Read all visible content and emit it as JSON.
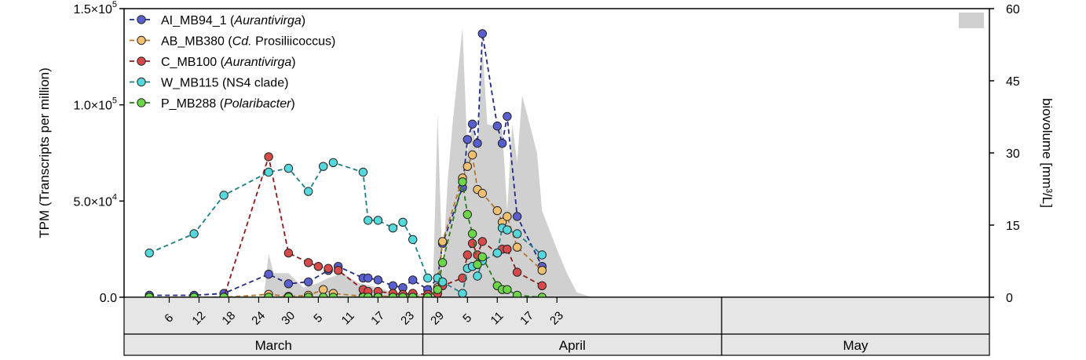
{
  "chart_data": {
    "type": "line",
    "x_unit": "date",
    "year_start_month": "March",
    "ylabel": "TPM (Transcripts per million)",
    "ylabel2": "biovolume [mm³/L]",
    "ylim": [
      0,
      150000
    ],
    "ylim2": [
      0,
      60
    ],
    "yticks": [
      {
        "value": 0,
        "label": "0.0"
      },
      {
        "value": 50000,
        "base": "5.0×10",
        "exp": "4"
      },
      {
        "value": 100000,
        "base": "1.0×10",
        "exp": "5"
      },
      {
        "value": 150000,
        "base": "1.5×10",
        "exp": "5"
      }
    ],
    "yticks2": [
      "0",
      "15",
      "30",
      "45",
      "60"
    ],
    "x_day_ticks": [
      {
        "month": "March",
        "day": "6"
      },
      {
        "month": "March",
        "day": "12"
      },
      {
        "month": "March",
        "day": "18"
      },
      {
        "month": "March",
        "day": "24"
      },
      {
        "month": "March",
        "day": "30"
      },
      {
        "month": "April",
        "day": "5"
      },
      {
        "month": "April",
        "day": "11"
      },
      {
        "month": "April",
        "day": "17"
      },
      {
        "month": "April",
        "day": "23"
      },
      {
        "month": "April",
        "day": "29"
      },
      {
        "month": "May",
        "day": "5"
      },
      {
        "month": "May",
        "day": "11"
      },
      {
        "month": "May",
        "day": "17"
      },
      {
        "month": "May",
        "day": "23"
      }
    ],
    "months": [
      "March",
      "April",
      "May"
    ],
    "legend_position": "top-left",
    "series": [
      {
        "name_parts": [
          {
            "text": "AI_MB94_1 (",
            "italic": false
          },
          {
            "text": "Aurantivirga",
            "italic": true
          },
          {
            "text": ")",
            "italic": false
          }
        ],
        "line_color": "#1f2a8a",
        "fill_color": "#5a5fd0",
        "points": [
          [
            "03-02",
            1000
          ],
          [
            "03-11",
            1000
          ],
          [
            "03-17",
            2000
          ],
          [
            "03-26",
            12000
          ],
          [
            "03-30",
            7000
          ],
          [
            "04-03",
            8000
          ],
          [
            "04-07",
            14000
          ],
          [
            "04-09",
            16000
          ],
          [
            "04-14",
            10000
          ],
          [
            "04-15",
            10000
          ],
          [
            "04-17",
            9000
          ],
          [
            "04-20",
            6000
          ],
          [
            "04-22",
            5000
          ],
          [
            "04-24",
            9000
          ],
          [
            "04-27",
            4000
          ],
          [
            "04-29",
            10000
          ],
          [
            "04-30",
            28000
          ],
          [
            "05-04",
            57000
          ],
          [
            "05-05",
            82000
          ],
          [
            "05-06",
            90000
          ],
          [
            "05-07",
            80000
          ],
          [
            "05-08",
            137000
          ],
          [
            "05-11",
            89000
          ],
          [
            "05-12",
            80000
          ],
          [
            "05-13",
            94000
          ],
          [
            "05-15",
            42000
          ],
          [
            "05-20",
            16000
          ]
        ]
      },
      {
        "name_parts": [
          {
            "text": "AB_MB380 (",
            "italic": false
          },
          {
            "text": "Cd.",
            "italic": true
          },
          {
            "text": " Prosiliicoccus)",
            "italic": false
          }
        ],
        "line_color": "#b5762a",
        "fill_color": "#f0c070",
        "points": [
          [
            "03-02",
            0
          ],
          [
            "03-11",
            0
          ],
          [
            "03-17",
            0
          ],
          [
            "03-26",
            1500
          ],
          [
            "03-30",
            500
          ],
          [
            "04-03",
            1000
          ],
          [
            "04-06",
            4000
          ],
          [
            "04-08",
            2000
          ],
          [
            "04-14",
            500
          ],
          [
            "04-15",
            500
          ],
          [
            "04-17",
            500
          ],
          [
            "04-20",
            500
          ],
          [
            "04-22",
            500
          ],
          [
            "04-24",
            500
          ],
          [
            "04-27",
            500
          ],
          [
            "04-29",
            5000
          ],
          [
            "04-30",
            29000
          ],
          [
            "05-04",
            62000
          ],
          [
            "05-05",
            68000
          ],
          [
            "05-06",
            74000
          ],
          [
            "05-07",
            56000
          ],
          [
            "05-08",
            54000
          ],
          [
            "05-11",
            45000
          ],
          [
            "05-12",
            39000
          ],
          [
            "05-13",
            42000
          ],
          [
            "05-15",
            26000
          ],
          [
            "05-20",
            14000
          ]
        ]
      },
      {
        "name_parts": [
          {
            "text": "C_MB100 (",
            "italic": false
          },
          {
            "text": "Aurantivirga",
            "italic": true
          },
          {
            "text": ")",
            "italic": false
          }
        ],
        "line_color": "#8e1a1a",
        "fill_color": "#d64a4a",
        "points": [
          [
            "03-02",
            0
          ],
          [
            "03-11",
            0
          ],
          [
            "03-17",
            0
          ],
          [
            "03-26",
            73000
          ],
          [
            "03-30",
            23000
          ],
          [
            "04-03",
            18000
          ],
          [
            "04-05",
            16000
          ],
          [
            "04-07",
            15000
          ],
          [
            "04-09",
            14000
          ],
          [
            "04-14",
            4000
          ],
          [
            "04-15",
            3000
          ],
          [
            "04-17",
            3000
          ],
          [
            "04-20",
            2000
          ],
          [
            "04-22",
            1500
          ],
          [
            "04-24",
            2000
          ],
          [
            "04-27",
            1500
          ],
          [
            "04-29",
            2000
          ],
          [
            "04-30",
            6000
          ],
          [
            "05-04",
            10000
          ],
          [
            "05-05",
            22000
          ],
          [
            "05-06",
            28000
          ],
          [
            "05-07",
            22000
          ],
          [
            "05-08",
            29000
          ],
          [
            "05-11",
            23000
          ],
          [
            "05-12",
            25000
          ],
          [
            "05-13",
            25000
          ],
          [
            "05-15",
            13000
          ],
          [
            "05-20",
            6000
          ]
        ]
      },
      {
        "name_parts": [
          {
            "text": "W_MB115 (NS4 clade)",
            "italic": false
          }
        ],
        "line_color": "#1a7f86",
        "fill_color": "#55d8dc",
        "points": [
          [
            "03-02",
            23000
          ],
          [
            "03-11",
            33000
          ],
          [
            "03-17",
            53000
          ],
          [
            "03-26",
            65000
          ],
          [
            "03-30",
            67000
          ],
          [
            "04-03",
            55000
          ],
          [
            "04-06",
            68000
          ],
          [
            "04-08",
            70000
          ],
          [
            "04-14",
            65000
          ],
          [
            "04-15",
            40000
          ],
          [
            "04-17",
            40000
          ],
          [
            "04-20",
            36000
          ],
          [
            "04-22",
            39000
          ],
          [
            "04-24",
            30000
          ],
          [
            "04-27",
            10000
          ],
          [
            "04-29",
            10000
          ],
          [
            "04-30",
            8000
          ],
          [
            "05-04",
            2000
          ],
          [
            "05-05",
            15000
          ],
          [
            "05-06",
            16000
          ],
          [
            "05-07",
            11000
          ],
          [
            "05-08",
            19000
          ],
          [
            "05-11",
            23000
          ],
          [
            "05-12",
            36000
          ],
          [
            "05-13",
            35000
          ],
          [
            "05-15",
            33000
          ],
          [
            "05-20",
            22000
          ]
        ]
      },
      {
        "name_parts": [
          {
            "text": "P_MB288 (",
            "italic": false
          },
          {
            "text": "Polaribacter",
            "italic": true
          },
          {
            "text": ")",
            "italic": false
          }
        ],
        "line_color": "#2a7a1a",
        "fill_color": "#6cd64a",
        "points": [
          [
            "03-02",
            0
          ],
          [
            "03-11",
            0
          ],
          [
            "03-17",
            0
          ],
          [
            "03-26",
            0
          ],
          [
            "03-30",
            0
          ],
          [
            "04-03",
            0
          ],
          [
            "04-06",
            0
          ],
          [
            "04-08",
            0
          ],
          [
            "04-14",
            0
          ],
          [
            "04-15",
            0
          ],
          [
            "04-17",
            0
          ],
          [
            "04-20",
            0
          ],
          [
            "04-22",
            0
          ],
          [
            "04-24",
            0
          ],
          [
            "04-27",
            0
          ],
          [
            "04-29",
            4000
          ],
          [
            "04-30",
            18000
          ],
          [
            "05-04",
            60000
          ],
          [
            "05-05",
            43000
          ],
          [
            "05-06",
            33000
          ],
          [
            "05-07",
            17000
          ],
          [
            "05-08",
            21000
          ],
          [
            "05-11",
            6000
          ],
          [
            "05-12",
            4000
          ],
          [
            "05-13",
            4000
          ],
          [
            "05-15",
            1000
          ],
          [
            "05-20",
            0
          ]
        ]
      }
    ],
    "biovolume": {
      "color": "#d0d0d0",
      "points": [
        [
          "03-01",
          0
        ],
        [
          "03-25",
          0
        ],
        [
          "03-26",
          9
        ],
        [
          "03-27",
          5
        ],
        [
          "03-30",
          5
        ],
        [
          "04-02",
          2
        ],
        [
          "04-05",
          3
        ],
        [
          "04-07",
          4
        ],
        [
          "04-10",
          5
        ],
        [
          "04-13",
          3
        ],
        [
          "04-17",
          2
        ],
        [
          "04-20",
          1
        ],
        [
          "04-24",
          1
        ],
        [
          "04-28",
          0
        ],
        [
          "04-29",
          38
        ],
        [
          "04-30",
          5
        ],
        [
          "05-01",
          24
        ],
        [
          "05-02",
          36
        ],
        [
          "05-04",
          56
        ],
        [
          "05-05",
          30
        ],
        [
          "05-06",
          36
        ],
        [
          "05-07",
          30
        ],
        [
          "05-08",
          52
        ],
        [
          "05-09",
          36
        ],
        [
          "05-12",
          35
        ],
        [
          "05-13",
          18
        ],
        [
          "05-14",
          36
        ],
        [
          "05-15",
          28
        ],
        [
          "05-16",
          42
        ],
        [
          "05-17",
          38
        ],
        [
          "05-19",
          30
        ],
        [
          "05-20",
          18
        ],
        [
          "05-23",
          10
        ],
        [
          "05-25",
          5
        ],
        [
          "05-27",
          1
        ],
        [
          "05-30",
          0
        ]
      ]
    }
  }
}
